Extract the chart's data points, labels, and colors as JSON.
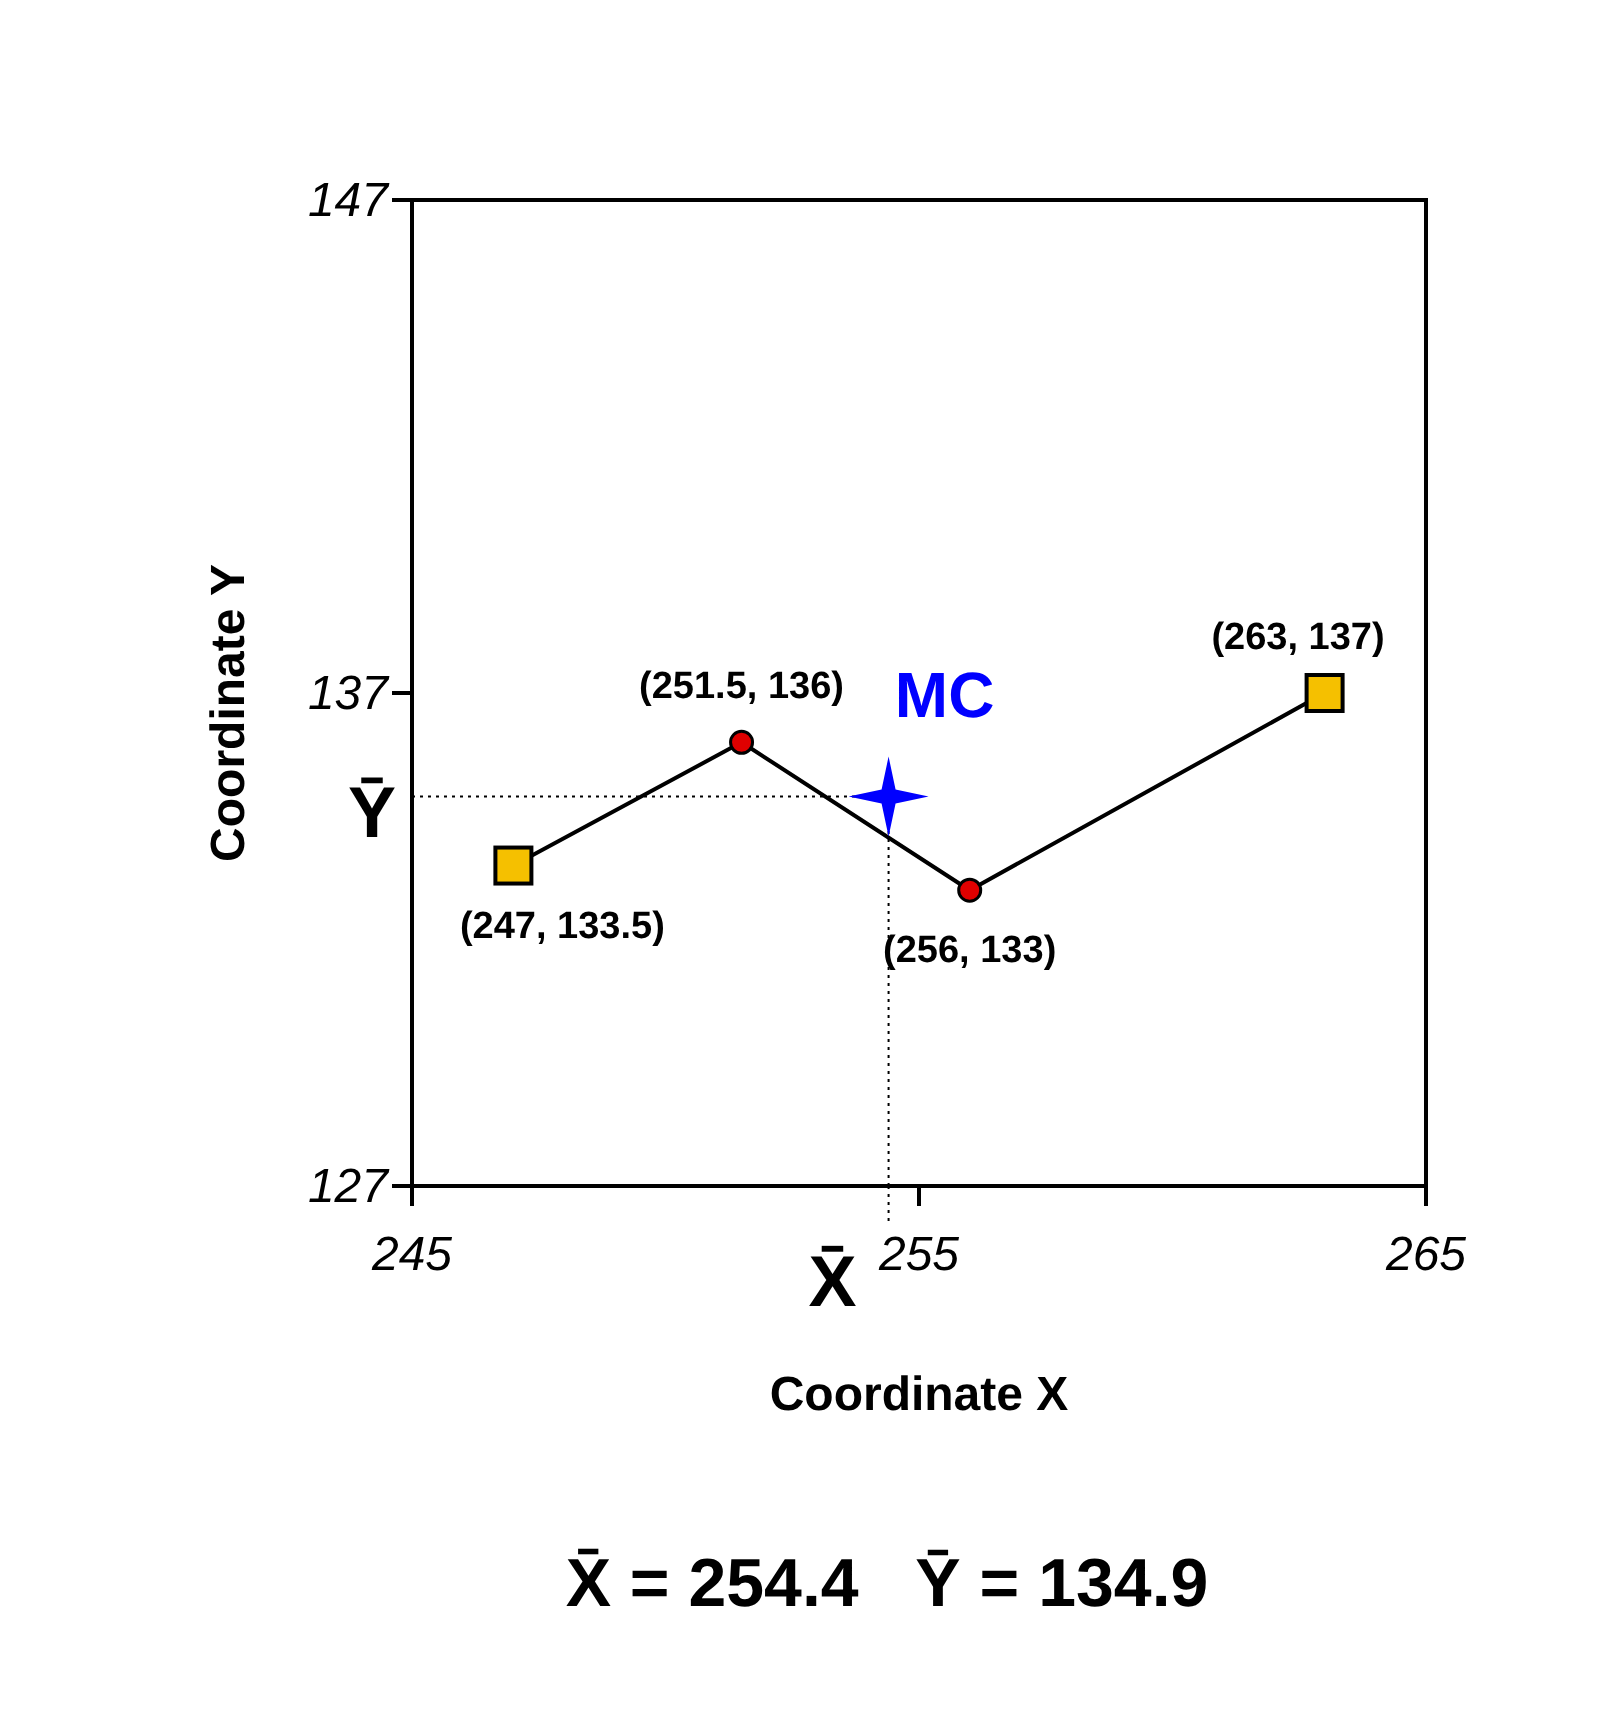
{
  "chart_data": {
    "type": "scatter",
    "xlabel": "Coordinate X",
    "ylabel": "Coordinate Y",
    "xlim": [
      245,
      265
    ],
    "xticks": [
      245,
      255,
      265
    ],
    "ylim": [
      127,
      147
    ],
    "yticks": [
      127,
      137,
      147
    ],
    "grid": false,
    "legend": false,
    "series": [
      {
        "type": "line",
        "color": "#000000",
        "marker": "none",
        "x": [
          247,
          251.5,
          256,
          263
        ],
        "values": [
          133.5,
          136,
          133,
          137
        ],
        "value_labels": [
          "(247, 133.5)",
          "(251.5, 136)",
          "(256, 133)",
          "(263, 137)"
        ]
      },
      {
        "color": "#f5c000",
        "marker": "square",
        "x": [
          247,
          263
        ],
        "values": [
          133.5,
          137
        ]
      },
      {
        "color": "#e00000",
        "marker": "circle",
        "x": [
          251.5,
          256
        ],
        "values": [
          136,
          133
        ]
      },
      {
        "name": "MC",
        "color": "#0000ff",
        "marker": "star",
        "x": [
          254.4
        ],
        "values": [
          134.9
        ]
      }
    ],
    "ref_lines": [
      {
        "axis": "x",
        "value": 254.4,
        "label": "X̄",
        "line_style": "dotted"
      },
      {
        "axis": "y",
        "value": 134.9,
        "label": "Ȳ",
        "line_style": "dotted"
      }
    ],
    "annotations": [
      "X̄ = 254.4   Ȳ = 134.9"
    ]
  }
}
